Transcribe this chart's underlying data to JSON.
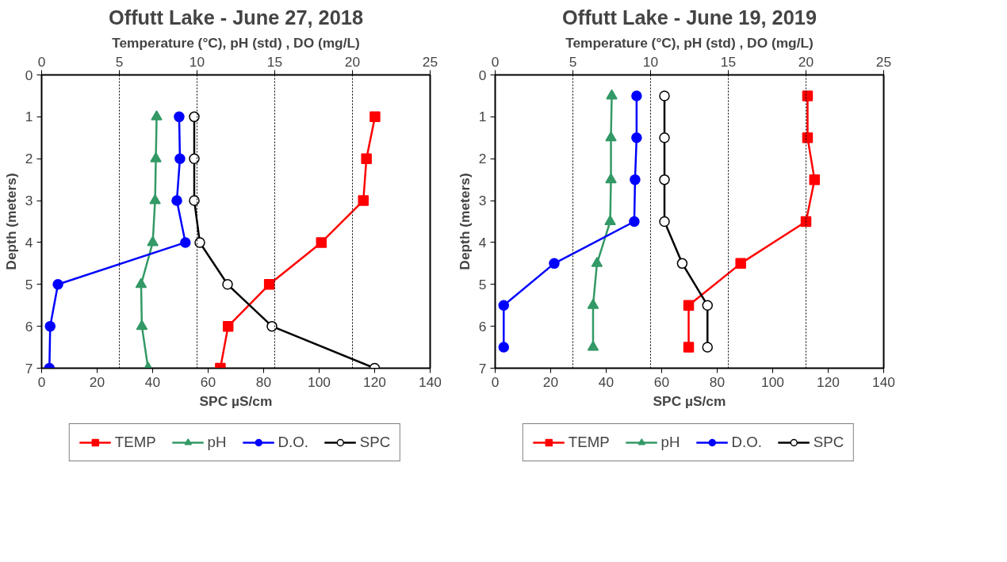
{
  "chart_data": [
    {
      "type": "line",
      "title": "Offutt Lake - June 27, 2018",
      "xlabel": "SPC µS/cm",
      "x2label": "Temperature (°C), pH (std) , DO (mg/L)",
      "ylabel": "Depth (meters)",
      "xlim": [
        0,
        140
      ],
      "xticks": [
        0,
        20,
        40,
        60,
        80,
        100,
        120,
        140
      ],
      "x2lim": [
        0,
        25
      ],
      "x2ticks": [
        0,
        5,
        10,
        15,
        20,
        25
      ],
      "ylim": [
        7,
        0
      ],
      "yticks": [
        0,
        1,
        2,
        3,
        4,
        5,
        6,
        7
      ],
      "grid": "x2",
      "legend": "bottom",
      "series": [
        {
          "name": "TEMP",
          "color": "#ff0000",
          "marker": "square",
          "axis": "x2",
          "x": [
            21.45,
            20.9,
            20.7,
            18.0,
            14.65,
            12.0,
            11.5
          ],
          "values": [
            1,
            2,
            3,
            4,
            5,
            6,
            7
          ]
        },
        {
          "name": "pH",
          "color": "#339966",
          "marker": "triangle",
          "axis": "x2",
          "x": [
            7.4,
            7.35,
            7.3,
            7.15,
            6.4,
            6.45,
            6.85
          ],
          "values": [
            1,
            2,
            3,
            4,
            5,
            6,
            7
          ]
        },
        {
          "name": "D.O.",
          "color": "#0000ff",
          "marker": "circle",
          "axis": "x2",
          "x": [
            8.85,
            8.9,
            8.7,
            9.25,
            1.05,
            0.55,
            0.5
          ],
          "values": [
            1,
            2,
            3,
            4,
            5,
            6,
            7
          ]
        },
        {
          "name": "SPC",
          "color": "#000000",
          "marker": "circle_open",
          "x": [
            55,
            55,
            55,
            57,
            67,
            83,
            120
          ],
          "values": [
            1,
            2,
            3,
            4,
            5,
            6,
            7
          ]
        }
      ]
    },
    {
      "type": "line",
      "title": "Offutt Lake - June 19, 2019",
      "xlabel": "SPC µS/cm",
      "x2label": "Temperature (°C), pH (std) , DO (mg/L)",
      "ylabel": "Depth (meters)",
      "xlim": [
        0,
        140
      ],
      "xticks": [
        0,
        20,
        40,
        60,
        80,
        100,
        120,
        140
      ],
      "x2lim": [
        0,
        25
      ],
      "x2ticks": [
        0,
        5,
        10,
        15,
        20,
        25
      ],
      "ylim": [
        7,
        0
      ],
      "yticks": [
        0,
        1,
        2,
        3,
        4,
        5,
        6,
        7
      ],
      "grid": "x2",
      "legend": "bottom",
      "series": [
        {
          "name": "TEMP",
          "color": "#ff0000",
          "marker": "square",
          "axis": "x2",
          "x": [
            20.1,
            20.1,
            20.55,
            20.0,
            15.8,
            12.45,
            12.45
          ],
          "values": [
            0.5,
            1.5,
            2.5,
            3.5,
            4.5,
            5.5,
            6.5
          ]
        },
        {
          "name": "pH",
          "color": "#339966",
          "marker": "triangle",
          "axis": "x2",
          "x": [
            7.5,
            7.45,
            7.45,
            7.4,
            6.55,
            6.3,
            6.3
          ],
          "values": [
            0.5,
            1.5,
            2.5,
            3.5,
            4.5,
            5.5,
            6.5
          ]
        },
        {
          "name": "D.O.",
          "color": "#0000ff",
          "marker": "circle",
          "axis": "x2",
          "x": [
            9.1,
            9.1,
            9.0,
            8.95,
            3.8,
            0.55,
            0.55
          ],
          "values": [
            0.5,
            1.5,
            2.5,
            3.5,
            4.5,
            5.5,
            6.5
          ]
        },
        {
          "name": "SPC",
          "color": "#000000",
          "marker": "circle_open",
          "x": [
            61,
            61,
            61,
            61,
            67.4,
            76.5,
            76.5
          ],
          "values": [
            0.5,
            1.5,
            2.5,
            3.5,
            4.5,
            5.5,
            6.5
          ]
        }
      ]
    }
  ]
}
